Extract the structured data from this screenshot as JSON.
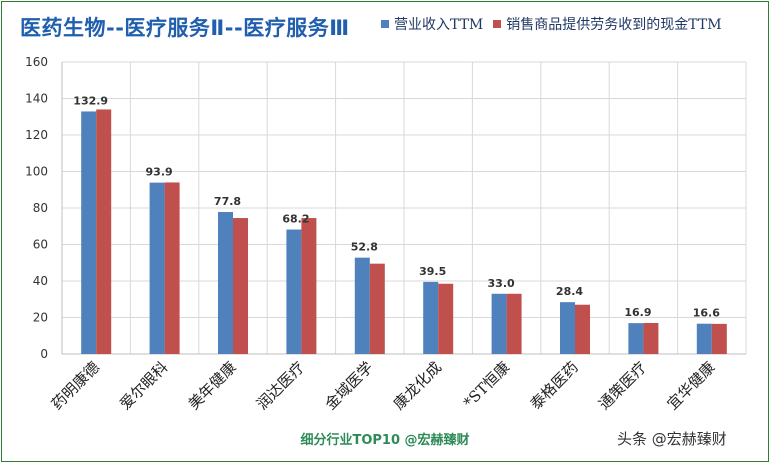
{
  "title": "医药生物--医疗服务Ⅱ--医疗服务Ⅲ",
  "footer": "细分行业TOP10 @宏赫臻财",
  "watermark": "头条 @宏赫臻财",
  "colors": {
    "series1": "#4f81bd",
    "series2": "#c0504d",
    "grid": "#d9d9d9",
    "title": "#1f5fae",
    "footer": "#2e8b57"
  },
  "chart_data": {
    "type": "bar",
    "title": "医药生物--医疗服务Ⅱ--医疗服务Ⅲ",
    "categories": [
      "药明康德",
      "爱尔眼科",
      "美年健康",
      "润达医疗",
      "金域医学",
      "康龙化成",
      "*ST恒康",
      "泰格医药",
      "通策医疗",
      "宜华健康"
    ],
    "series": [
      {
        "name": "营业收入TTM",
        "values": [
          132.9,
          93.9,
          77.8,
          68.2,
          52.8,
          39.5,
          33.0,
          28.4,
          16.9,
          16.6
        ],
        "labels": [
          "132.9",
          "93.9",
          "77.8",
          "68.2",
          "52.8",
          "39.5",
          "33.0",
          "28.4",
          "16.9",
          "16.6"
        ]
      },
      {
        "name": "销售商品提供劳务收到的现金TTM",
        "values": [
          134,
          94,
          74.5,
          74.5,
          49.5,
          38.5,
          33,
          27,
          17,
          16.5
        ]
      }
    ],
    "ylim": [
      0,
      160
    ],
    "yticks": [
      "0",
      "20",
      "40",
      "60",
      "80",
      "100",
      "120",
      "140",
      "160"
    ],
    "grid": true,
    "legend": "top-right"
  }
}
